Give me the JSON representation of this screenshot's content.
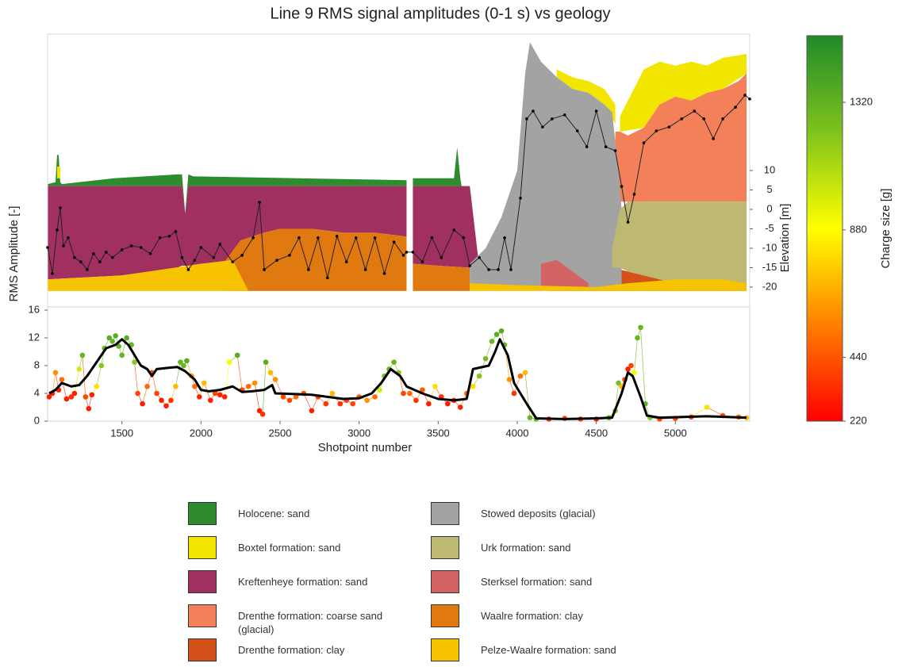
{
  "chart_data": [
    {
      "type": "area",
      "title": "Line 9 RMS signal amplitudes (0-1 s) vs geology",
      "y_label": "Elevation [m]",
      "xlim": [
        1030,
        5470
      ],
      "ylim": [
        -25,
        45
      ],
      "yticks": [
        10,
        5,
        0,
        -5,
        -10,
        -15,
        -20
      ],
      "series": [
        {
          "name": "Holocene: sand",
          "color": "#2e8b2e",
          "x": [
            1030,
            1080,
            1090,
            1100,
            1110,
            1120,
            1450,
            1850,
            1880,
            1900,
            1920,
            1950,
            3300,
            null,
            3340,
            3600,
            3620,
            3640,
            3660,
            3700
          ],
          "top": [
            6.5,
            7,
            14,
            14,
            7,
            6.5,
            8,
            9,
            9,
            -1,
            9,
            8.5,
            7.5,
            null,
            8,
            8,
            16,
            8,
            3,
            0
          ],
          "bottom": [
            6,
            6,
            6,
            6,
            6,
            6,
            6,
            6,
            6,
            -1,
            6,
            6,
            6,
            null,
            6,
            6,
            6,
            6,
            0,
            -3
          ]
        },
        {
          "name": "Boxtel formation: sand",
          "color": "#f2e600",
          "x": [
            1090,
            1110,
            null,
            4250,
            4350,
            4450,
            4550,
            4620,
            null,
            4650,
            4800,
            4900,
            5000,
            5100,
            5200,
            5300,
            5450
          ],
          "top": [
            11,
            11,
            null,
            36,
            34,
            33,
            31,
            27,
            null,
            24,
            36,
            38,
            37,
            38,
            37,
            39,
            40
          ],
          "bottom": [
            8,
            8,
            null,
            34,
            31,
            30,
            27,
            22,
            null,
            20,
            21,
            27,
            29,
            28,
            30,
            31,
            35
          ]
        },
        {
          "name": "Kreftenheye formation: sand",
          "color": "#a0305f",
          "x": [
            1030,
            1500,
            1850,
            1880,
            1900,
            1920,
            2000,
            2150,
            2250,
            2400,
            2500,
            2700,
            2900,
            3100,
            3300,
            null,
            3340,
            3500,
            3700,
            3760
          ],
          "top": [
            6,
            6,
            6,
            6,
            -1,
            6,
            6,
            6,
            6,
            6,
            6,
            6,
            6,
            6,
            6,
            null,
            6,
            6,
            6,
            -15
          ],
          "bottom": [
            -18,
            -17,
            -15,
            -14.5,
            -14.5,
            -14.5,
            -14,
            -13.5,
            -8,
            -6,
            -5,
            -5,
            -6,
            -6,
            -7,
            null,
            -14,
            -14.5,
            -15,
            -18
          ]
        },
        {
          "name": "Drenthe formation: coarse sand (glacial)",
          "color": "#f4805a",
          "x": [
            4620,
            4650,
            4700,
            4800,
            4900,
            5000,
            5100,
            5200,
            5300,
            5400,
            5450
          ],
          "top": [
            20,
            20,
            19,
            21,
            27,
            29,
            28,
            30,
            31,
            33,
            35
          ],
          "bottom": [
            10,
            2,
            2,
            2,
            2,
            2,
            2,
            2,
            2,
            2,
            2
          ]
        },
        {
          "name": "Drenthe formation: clay",
          "color": "#d2521a",
          "x": [
            4200,
            4400,
            4600,
            4700,
            4800,
            5000,
            5200,
            5450
          ],
          "top": [
            -17,
            -16,
            -15,
            -16,
            -17,
            -19,
            -19,
            -20
          ],
          "bottom": [
            -21,
            -21,
            -21,
            -21,
            -21,
            -21,
            -21,
            -21
          ]
        },
        {
          "name": "Stowed deposits (glacial)",
          "color": "#a3a3a3",
          "x": [
            3700,
            3800,
            3900,
            4000,
            4050,
            4080,
            4150,
            4250,
            4350,
            4450,
            4550,
            4600,
            4640,
            4660
          ],
          "top": [
            -14,
            -10,
            -2,
            10,
            35,
            43,
            38,
            34,
            31,
            30,
            27,
            25,
            10,
            0
          ],
          "bottom": [
            -20,
            -20,
            -20,
            -20,
            -20,
            -20,
            -20,
            -20,
            -20,
            -20,
            -20,
            -20,
            -20,
            -20
          ]
        },
        {
          "name": "Urk formation: sand",
          "color": "#bdb872",
          "x": [
            4600,
            4650,
            4700,
            4800,
            5000,
            5200,
            5450
          ],
          "top": [
            -10,
            0,
            2,
            2,
            2,
            2,
            2
          ],
          "bottom": [
            -15,
            -15,
            -16,
            -17,
            -19,
            -19,
            -20
          ]
        },
        {
          "name": "Sterksel formation: sand",
          "color": "#d46464",
          "x": [
            4150,
            4250,
            4350,
            4450
          ],
          "top": [
            -14,
            -13,
            -16,
            -19
          ],
          "bottom": [
            -20,
            -20,
            -20,
            -20
          ]
        },
        {
          "name": "Waalre formation: clay",
          "color": "#e07a10",
          "x": [
            2150,
            2250,
            2400,
            2500,
            2700,
            2900,
            3100,
            3300,
            null,
            3340,
            3500,
            3700
          ],
          "top": [
            -13.5,
            -8,
            -6,
            -5,
            -5,
            -6,
            -6,
            -7,
            null,
            -14,
            -14.5,
            -15
          ],
          "bottom": [
            -21,
            -21,
            -21,
            -21,
            -21,
            -21,
            -21,
            -21,
            null,
            -21,
            -21,
            -21
          ]
        },
        {
          "name": "Pelze-Waalre formation: sand",
          "color": "#f7c200",
          "x": [
            1030,
            1500,
            2000,
            2200,
            2300,
            null,
            3700,
            4000,
            4500,
            4700,
            5000,
            5300,
            5450
          ],
          "top": [
            -18,
            -17,
            -14,
            -13,
            -21,
            null,
            -19,
            -19.5,
            -20,
            -19,
            -18,
            -18,
            -19
          ],
          "bottom": [
            -21,
            -21,
            -21,
            -21,
            -21,
            null,
            -21,
            -21,
            -21,
            -21,
            -21,
            -21,
            -21
          ]
        }
      ],
      "profile": {
        "x": [
          1030,
          1060,
          1090,
          1110,
          1130,
          1160,
          1200,
          1240,
          1280,
          1320,
          1360,
          1400,
          1440,
          1500,
          1560,
          1620,
          1680,
          1740,
          1800,
          1840,
          1880,
          1920,
          1960,
          2000,
          2080,
          2120,
          2200,
          2260,
          2330,
          2370,
          2400,
          2480,
          2560,
          2620,
          2680,
          2740,
          2800,
          2860,
          2920,
          2980,
          3040,
          3100,
          3160,
          3220,
          3280,
          3300,
          3340,
          3400,
          3460,
          3520,
          3600,
          3660,
          3700,
          3760,
          3820,
          3880,
          3920,
          3960,
          4020,
          4060,
          4100,
          4160,
          4220,
          4300,
          4380,
          4440,
          4500,
          4560,
          4620,
          4660,
          4700,
          4740,
          4800,
          4880,
          4960,
          5040,
          5120,
          5180,
          5240,
          5300,
          5380,
          5440,
          5470
        ],
        "values": [
          -9.8,
          -16.5,
          -5.3,
          0.4,
          -9.4,
          -7.3,
          -12.4,
          -13.5,
          -15.5,
          -11.4,
          -13.5,
          -11,
          -12.4,
          -10.4,
          -9.4,
          -9.8,
          -11.4,
          -7.3,
          -6.9,
          -5.7,
          -12.4,
          -15.5,
          -13.1,
          -9.8,
          -12.4,
          -9,
          -13.5,
          -11.8,
          -7.3,
          1.8,
          -15.5,
          -13.1,
          -11.8,
          -7.3,
          -15.5,
          -7.3,
          -17.6,
          -6.9,
          -13.5,
          -7.3,
          -15.5,
          -7.3,
          -16.5,
          -8.4,
          -11.8,
          -11,
          -11,
          -13.5,
          -7.3,
          -12.4,
          -5.3,
          -7.3,
          -14.5,
          -12.4,
          -15.5,
          -15.5,
          -7.3,
          -15.5,
          2.9,
          23.3,
          25.3,
          21.2,
          23.3,
          24.3,
          20.2,
          16.1,
          25.3,
          16.1,
          15.1,
          5.9,
          -3.3,
          3.9,
          17.1,
          20.2,
          21.2,
          23.3,
          25.3,
          23.3,
          18.2,
          23.3,
          26.3,
          29.4,
          28.4
        ]
      }
    },
    {
      "type": "scatter",
      "x_label": "Shotpoint number",
      "y_label": "RMS Amplitude [-]",
      "xlim": [
        1030,
        5470
      ],
      "ylim": [
        0,
        16
      ],
      "xticks": [
        1500,
        2000,
        2500,
        3000,
        3500,
        4000,
        4500,
        5000
      ],
      "yticks": [
        0,
        4,
        8,
        12,
        16
      ],
      "x": [
        1040,
        1060,
        1080,
        1100,
        1120,
        1150,
        1180,
        1200,
        1230,
        1250,
        1270,
        1290,
        1310,
        1340,
        1370,
        1390,
        1420,
        1440,
        1460,
        1480,
        1500,
        1530,
        1560,
        1580,
        1600,
        1630,
        1660,
        1690,
        1720,
        1750,
        1780,
        1810,
        1840,
        1870,
        1890,
        1910,
        1940,
        1960,
        1990,
        2020,
        2060,
        2090,
        2120,
        2150,
        2180,
        2230,
        2260,
        2300,
        2340,
        2370,
        2390,
        2410,
        2440,
        2470,
        2520,
        2560,
        2600,
        2650,
        2700,
        2740,
        2790,
        2830,
        2880,
        2920,
        2960,
        3000,
        3050,
        3100,
        3130,
        3160,
        3190,
        3220,
        3250,
        3280,
        3320,
        3360,
        3400,
        3440,
        3480,
        3520,
        3560,
        3600,
        3640,
        3680,
        3720,
        3760,
        3800,
        3840,
        3870,
        3900,
        3920,
        3950,
        3980,
        4020,
        4050,
        4080,
        4120,
        4200,
        4300,
        4400,
        4500,
        4580,
        4620,
        4640,
        4660,
        4680,
        4700,
        4720,
        4740,
        4760,
        4780,
        4810,
        4840,
        4900,
        5000,
        5100,
        5200,
        5300,
        5400,
        5450
      ],
      "values": [
        3.5,
        4,
        7,
        4.5,
        6,
        3.2,
        3.5,
        4,
        7.5,
        9.5,
        3.5,
        1.8,
        3.8,
        5,
        8,
        10.5,
        12,
        11.5,
        12.3,
        10.8,
        9.5,
        12,
        11,
        8.5,
        4,
        2.5,
        5,
        7,
        4,
        3,
        2.2,
        3,
        5,
        8.5,
        8,
        8.7,
        6.5,
        5,
        3.5,
        5.5,
        3,
        4,
        3.8,
        3.5,
        8.5,
        9.5,
        4.5,
        5,
        5.5,
        1.5,
        1,
        8.5,
        7,
        6,
        3.5,
        3,
        3.5,
        4,
        1.5,
        3.5,
        2.5,
        4,
        2.5,
        3,
        2.5,
        3.5,
        3,
        3.5,
        4.5,
        6.5,
        7.5,
        8.5,
        7,
        4,
        4,
        3,
        4.5,
        2.5,
        5,
        3.5,
        2.5,
        3,
        2,
        4,
        5,
        6.5,
        9,
        11.5,
        12.5,
        13,
        11,
        6,
        4,
        6.5,
        7,
        0.5,
        0.3,
        0.3,
        0.4,
        0.3,
        0.3,
        0.5,
        1.5,
        5.5,
        5,
        6,
        7.5,
        8,
        7,
        12,
        13.5,
        2.5,
        0.5,
        0.3,
        0.4,
        0.6,
        2,
        0.8,
        0.6,
        0.5
      ],
      "charge": [
        300,
        300,
        600,
        300,
        500,
        300,
        350,
        300,
        1000,
        1300,
        400,
        300,
        300,
        800,
        1200,
        1300,
        1350,
        1300,
        1350,
        1300,
        1300,
        1350,
        1300,
        1200,
        400,
        300,
        500,
        400,
        400,
        300,
        300,
        350,
        700,
        1300,
        1300,
        1350,
        600,
        500,
        300,
        700,
        300,
        400,
        300,
        300,
        900,
        1350,
        400,
        500,
        600,
        300,
        350,
        1350,
        700,
        600,
        400,
        400,
        500,
        400,
        300,
        400,
        350,
        700,
        350,
        400,
        400,
        450,
        600,
        500,
        1000,
        1250,
        1300,
        1300,
        1200,
        400,
        500,
        350,
        450,
        300,
        800,
        350,
        300,
        300,
        300,
        500,
        800,
        1200,
        1250,
        1300,
        1350,
        1350,
        1300,
        600,
        350,
        500,
        700,
        1300,
        1300,
        350,
        400,
        400,
        300,
        1300,
        1200,
        1250,
        700,
        400,
        300,
        400,
        900,
        1300,
        1300,
        1300,
        1200,
        400,
        400,
        400,
        800,
        400,
        500,
        700
      ],
      "smooth": {
        "x": [
          1040,
          1080,
          1120,
          1180,
          1230,
          1280,
          1340,
          1400,
          1460,
          1500,
          1540,
          1580,
          1620,
          1660,
          1690,
          1720,
          1800,
          1850,
          1900,
          1960,
          2000,
          2050,
          2120,
          2200,
          2260,
          2320,
          2400,
          2450,
          2470,
          2600,
          2700,
          2800,
          2900,
          3000,
          3080,
          3140,
          3200,
          3260,
          3300,
          3400,
          3500,
          3600,
          3680,
          3720,
          3820,
          3860,
          3890,
          3940,
          3980,
          4060,
          4120,
          4300,
          4500,
          4600,
          4660,
          4700,
          4730,
          4780,
          4820,
          4900,
          5200,
          5450
        ],
        "values": [
          4,
          4.5,
          5.5,
          5,
          5.2,
          6.5,
          8.5,
          10.5,
          11,
          11.8,
          11,
          9.5,
          8,
          7.5,
          6.5,
          7.5,
          7.7,
          7.8,
          7.2,
          6,
          4.5,
          4.3,
          4.5,
          5,
          4.2,
          4.3,
          4.5,
          5.2,
          4,
          3.9,
          3.8,
          3.5,
          3.2,
          3.3,
          4,
          5.5,
          7.5,
          6.5,
          5,
          4,
          3.2,
          3,
          3.2,
          7.5,
          8,
          10,
          11.8,
          9.5,
          5.5,
          2.5,
          0.4,
          0.3,
          0.4,
          0.5,
          4,
          7,
          6.5,
          3.5,
          0.8,
          0.5,
          0.7,
          0.5
        ]
      },
      "colorbar": {
        "label": "Charge size [g]",
        "clim": [
          220,
          1550
        ],
        "ticks": [
          220,
          440,
          880,
          1320
        ],
        "colors": [
          "#ff0000",
          "#ff7f00",
          "#ffff00",
          "#7fc31c",
          "#1f8a2a"
        ]
      }
    }
  ]
}
